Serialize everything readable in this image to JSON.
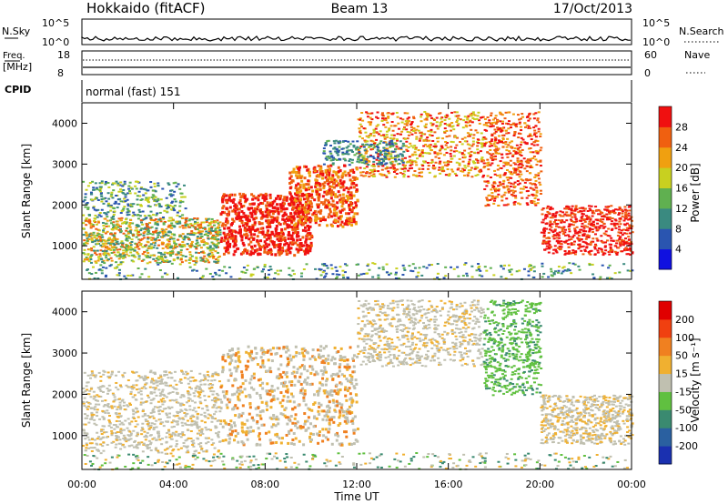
{
  "header": {
    "station": "Hokkaido (fitACF)",
    "beam": "Beam 13",
    "date": "17/Oct/2013"
  },
  "top_panels": {
    "nsky_label": "N.Sky",
    "nsearch_label": "N.Search",
    "nsky_ticks": [
      "10^5",
      "10^0"
    ],
    "nsearch_ticks": [
      "10^5",
      "10^0"
    ],
    "freq_label_1": "Freq.",
    "freq_label_2": "[MHz]",
    "freq_ticks": [
      "18",
      "8"
    ],
    "nave_label": "Nave",
    "nave_ticks": [
      "60",
      "0"
    ],
    "cpid_label": "CPID",
    "cpid_value": "normal (fast) 151"
  },
  "chart_data": [
    {
      "type": "heatmap",
      "name": "power",
      "xlabel": "Time UT",
      "ylabel": "Slant Range [km]",
      "x_ticks": [
        "00:00",
        "04:00",
        "08:00",
        "12:00",
        "16:00",
        "20:00",
        "00:00"
      ],
      "x_hours": [
        0,
        4,
        8,
        12,
        16,
        20,
        24
      ],
      "xlim_hours": [
        0,
        24
      ],
      "y_ticks": [
        1000,
        2000,
        3000,
        4000
      ],
      "ylim": [
        180,
        4500
      ],
      "colorbar": {
        "label": "Power [dB]",
        "ticks": [
          4,
          8,
          12,
          16,
          20,
          24,
          28
        ],
        "range": [
          0,
          32
        ],
        "colors": [
          "#1010e0",
          "#2a55b0",
          "#3a8a80",
          "#60b050",
          "#c8d020",
          "#f0a010",
          "#f06010",
          "#f01010"
        ]
      }
    },
    {
      "type": "heatmap",
      "name": "velocity",
      "xlabel": "Time UT",
      "ylabel": "Slant Range [km]",
      "x_ticks": [
        "00:00",
        "04:00",
        "08:00",
        "12:00",
        "16:00",
        "20:00",
        "00:00"
      ],
      "x_hours": [
        0,
        4,
        8,
        12,
        16,
        20,
        24
      ],
      "xlim_hours": [
        0,
        24
      ],
      "y_ticks": [
        1000,
        2000,
        3000,
        4000
      ],
      "ylim": [
        180,
        4500
      ],
      "colorbar": {
        "label": "Velocity [m s⁻¹]",
        "ticks": [
          200,
          100,
          50,
          15,
          -15,
          -50,
          -100,
          -200
        ],
        "colors": [
          "#1a30b0",
          "#2a60a0",
          "#3a8a70",
          "#60c040",
          "#c0c0b0",
          "#f0b030",
          "#f08020",
          "#f04010",
          "#e00000"
        ]
      }
    }
  ]
}
